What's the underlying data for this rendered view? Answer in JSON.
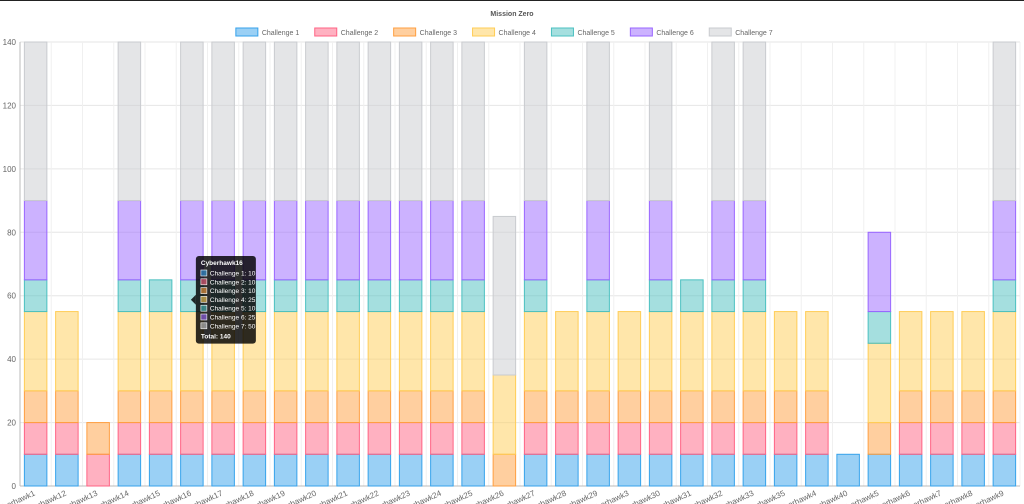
{
  "chart_data": {
    "type": "bar",
    "stacked": true,
    "title": "Mission Zero",
    "ylim": [
      0,
      140
    ],
    "yticks": [
      0,
      20,
      40,
      60,
      80,
      100,
      120,
      140
    ],
    "grid": true,
    "legend_position": "top",
    "categories": [
      "Cyberhawk1",
      "Cyberhawk12",
      "Cyberhawk13",
      "Cyberhawk14",
      "Cyberhawk15",
      "Cyberhawk16",
      "Cyberhawk17",
      "Cyberhawk18",
      "Cyberhawk19",
      "Cyberhawk20",
      "Cyberhawk21",
      "Cyberhawk22",
      "Cyberhawk23",
      "Cyberhawk24",
      "Cyberhawk25",
      "Cyberhawk26",
      "Cyberhawk27",
      "Cyberhawk28",
      "Cyberhawk29",
      "Cyberhawk3",
      "Cyberhawk30",
      "Cyberhawk31",
      "Cyberhawk32",
      "Cyberhawk33",
      "Cyberhawk35",
      "Cyberhawk4",
      "Cyberhawk40",
      "Cyberhawk5",
      "Cyberhawk6",
      "Cyberhawk7",
      "Cyberhawk8",
      "Cyberhawk9"
    ],
    "series": [
      {
        "name": "Challenge 1",
        "color": "#36a2eb",
        "values": [
          10,
          10,
          0,
          10,
          10,
          10,
          10,
          10,
          10,
          10,
          10,
          10,
          10,
          10,
          10,
          0,
          10,
          10,
          10,
          10,
          10,
          10,
          10,
          10,
          10,
          10,
          10,
          10,
          10,
          10,
          10,
          10
        ]
      },
      {
        "name": "Challenge 2",
        "color": "#ff6384",
        "values": [
          10,
          10,
          10,
          10,
          10,
          10,
          10,
          10,
          10,
          10,
          10,
          10,
          10,
          10,
          10,
          0,
          10,
          10,
          10,
          10,
          10,
          10,
          10,
          10,
          10,
          10,
          0,
          0,
          10,
          10,
          10,
          10
        ]
      },
      {
        "name": "Challenge 3",
        "color": "#ff9f40",
        "values": [
          10,
          10,
          10,
          10,
          10,
          10,
          10,
          10,
          10,
          10,
          10,
          10,
          10,
          10,
          10,
          10,
          10,
          10,
          10,
          10,
          10,
          10,
          10,
          10,
          10,
          10,
          0,
          10,
          10,
          10,
          10,
          10
        ]
      },
      {
        "name": "Challenge 4",
        "color": "#ffcd56",
        "values": [
          25,
          25,
          0,
          25,
          25,
          25,
          25,
          25,
          25,
          25,
          25,
          25,
          25,
          25,
          25,
          25,
          25,
          25,
          25,
          25,
          25,
          25,
          25,
          25,
          25,
          25,
          0,
          25,
          25,
          25,
          25,
          25
        ]
      },
      {
        "name": "Challenge 5",
        "color": "#4bc0c0",
        "values": [
          10,
          0,
          0,
          10,
          10,
          10,
          10,
          10,
          10,
          10,
          10,
          10,
          10,
          10,
          10,
          0,
          10,
          0,
          10,
          0,
          10,
          10,
          10,
          10,
          0,
          0,
          0,
          10,
          0,
          0,
          0,
          10
        ]
      },
      {
        "name": "Challenge 6",
        "color": "#9966ff",
        "values": [
          25,
          0,
          0,
          25,
          0,
          25,
          25,
          25,
          25,
          25,
          25,
          25,
          25,
          25,
          25,
          0,
          25,
          0,
          25,
          0,
          25,
          0,
          25,
          25,
          0,
          0,
          0,
          25,
          0,
          0,
          0,
          25
        ]
      },
      {
        "name": "Challenge 7",
        "color": "#c9cbcf",
        "values": [
          50,
          0,
          0,
          50,
          0,
          50,
          50,
          50,
          50,
          50,
          50,
          50,
          50,
          50,
          50,
          50,
          50,
          0,
          50,
          0,
          50,
          0,
          50,
          50,
          0,
          0,
          0,
          0,
          0,
          0,
          0,
          50
        ]
      }
    ],
    "tooltip": {
      "category_index": 5,
      "title": "Cyberhawk16",
      "lines": [
        "Challenge 1: 10",
        "Challenge 2: 10",
        "Challenge 3: 10",
        "Challenge 4: 25",
        "Challenge 5: 10",
        "Challenge 6: 25",
        "Challenge 7: 50"
      ],
      "footer": "Total: 140"
    }
  }
}
